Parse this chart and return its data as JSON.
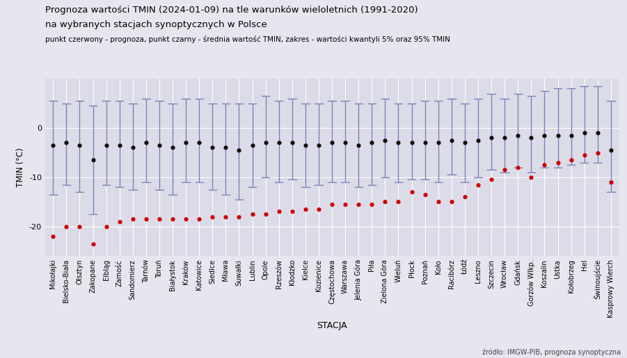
{
  "title_line1": "Prognoza wartości TMIN (2024-01-09) na tle warunków wieloletnich (1991-2020)",
  "title_line2": "na wybranych stacjach synoptycznych w Polsce",
  "subtitle": "punkt czerwony - prognoza, punkt czarny - średnia wartość TMIN, zakres - wartości kwantyli 5% oraz 95% TMIN",
  "xlabel": "STACJA",
  "ylabel": "TMIN (°C)",
  "source": "źródło: IMGW-PIB, prognoza synoptyczna",
  "background_color": "#e6e6ee",
  "plot_bg_color": "#dcdce8",
  "stations": [
    "Mikołajki",
    "Bielsko-Biała",
    "Olsztyn",
    "Zakopane",
    "Elbląg",
    "Zamość",
    "Sandomierz",
    "Tarnów",
    "Toruń",
    "Białystok",
    "Kraków",
    "Katowice",
    "Siedlce",
    "Mława",
    "Suwałki",
    "Lublin",
    "Opole",
    "Rzeszów",
    "Kłodzko",
    "Kielce",
    "Kozienice",
    "Częstochowa",
    "Warszawa",
    "Jelenia Góra",
    "Piła",
    "Zielona Góra",
    "Wieluń",
    "Płock",
    "Poznań",
    "Koło",
    "Racibórz",
    "Łódź",
    "Leszno",
    "Szczecin",
    "Wrocław",
    "Gdańsk",
    "Gorzów Wlkp.",
    "Koszalin",
    "Ustka",
    "Kołobrzeg",
    "Hel",
    "Świnoujście",
    "Kasprowy Wierch"
  ],
  "forecast": [
    -22.0,
    -20.0,
    -20.0,
    -23.5,
    -20.0,
    -19.0,
    -18.5,
    -18.5,
    -18.5,
    -18.5,
    -18.5,
    -18.5,
    -18.0,
    -18.0,
    -18.0,
    -17.5,
    -17.5,
    -17.0,
    -17.0,
    -16.5,
    -16.5,
    -15.5,
    -15.5,
    -15.5,
    -15.5,
    -15.0,
    -15.0,
    -13.0,
    -13.5,
    -15.0,
    -15.0,
    -14.0,
    -11.5,
    -10.5,
    -8.5,
    -8.0,
    -10.0,
    -7.5,
    -7.0,
    -6.5,
    -5.5,
    -5.0,
    -11.0
  ],
  "mean": [
    -3.5,
    -3.0,
    -3.5,
    -6.5,
    -3.5,
    -3.5,
    -4.0,
    -3.0,
    -3.5,
    -4.0,
    -3.0,
    -3.0,
    -4.0,
    -4.0,
    -4.5,
    -3.5,
    -3.0,
    -3.0,
    -3.0,
    -3.5,
    -3.5,
    -3.0,
    -3.0,
    -3.5,
    -3.0,
    -2.5,
    -3.0,
    -3.0,
    -3.0,
    -3.0,
    -2.5,
    -3.0,
    -2.5,
    -2.0,
    -2.0,
    -1.5,
    -2.0,
    -1.5,
    -1.5,
    -1.5,
    -1.0,
    -1.0,
    -4.5
  ],
  "q05": [
    -13.5,
    -11.5,
    -13.0,
    -17.5,
    -11.5,
    -12.0,
    -12.5,
    -11.0,
    -12.5,
    -13.5,
    -11.0,
    -11.0,
    -12.5,
    -13.5,
    -14.5,
    -12.0,
    -10.0,
    -11.0,
    -10.5,
    -12.0,
    -11.5,
    -11.0,
    -11.0,
    -12.0,
    -11.5,
    -10.0,
    -11.0,
    -10.5,
    -10.5,
    -11.0,
    -9.5,
    -11.0,
    -10.0,
    -8.5,
    -9.0,
    -8.0,
    -9.0,
    -8.0,
    -8.0,
    -7.5,
    -7.0,
    -7.0,
    -13.0
  ],
  "q95": [
    5.5,
    5.0,
    5.5,
    4.5,
    5.5,
    5.5,
    5.0,
    6.0,
    5.5,
    5.0,
    6.0,
    6.0,
    5.0,
    5.0,
    5.0,
    5.0,
    6.5,
    5.5,
    6.0,
    5.0,
    5.0,
    5.5,
    5.5,
    5.0,
    5.0,
    6.0,
    5.0,
    5.0,
    5.5,
    5.5,
    6.0,
    5.0,
    6.0,
    7.0,
    6.0,
    7.0,
    6.5,
    7.5,
    8.0,
    8.0,
    8.5,
    8.5,
    5.5
  ],
  "forecast_color": "#cc0000",
  "mean_color": "#111111",
  "errorbar_color": "#8080b8",
  "grid_color": "#ffffff",
  "yticks": [
    -20,
    -10,
    0
  ],
  "ylim": [
    -26,
    10
  ]
}
